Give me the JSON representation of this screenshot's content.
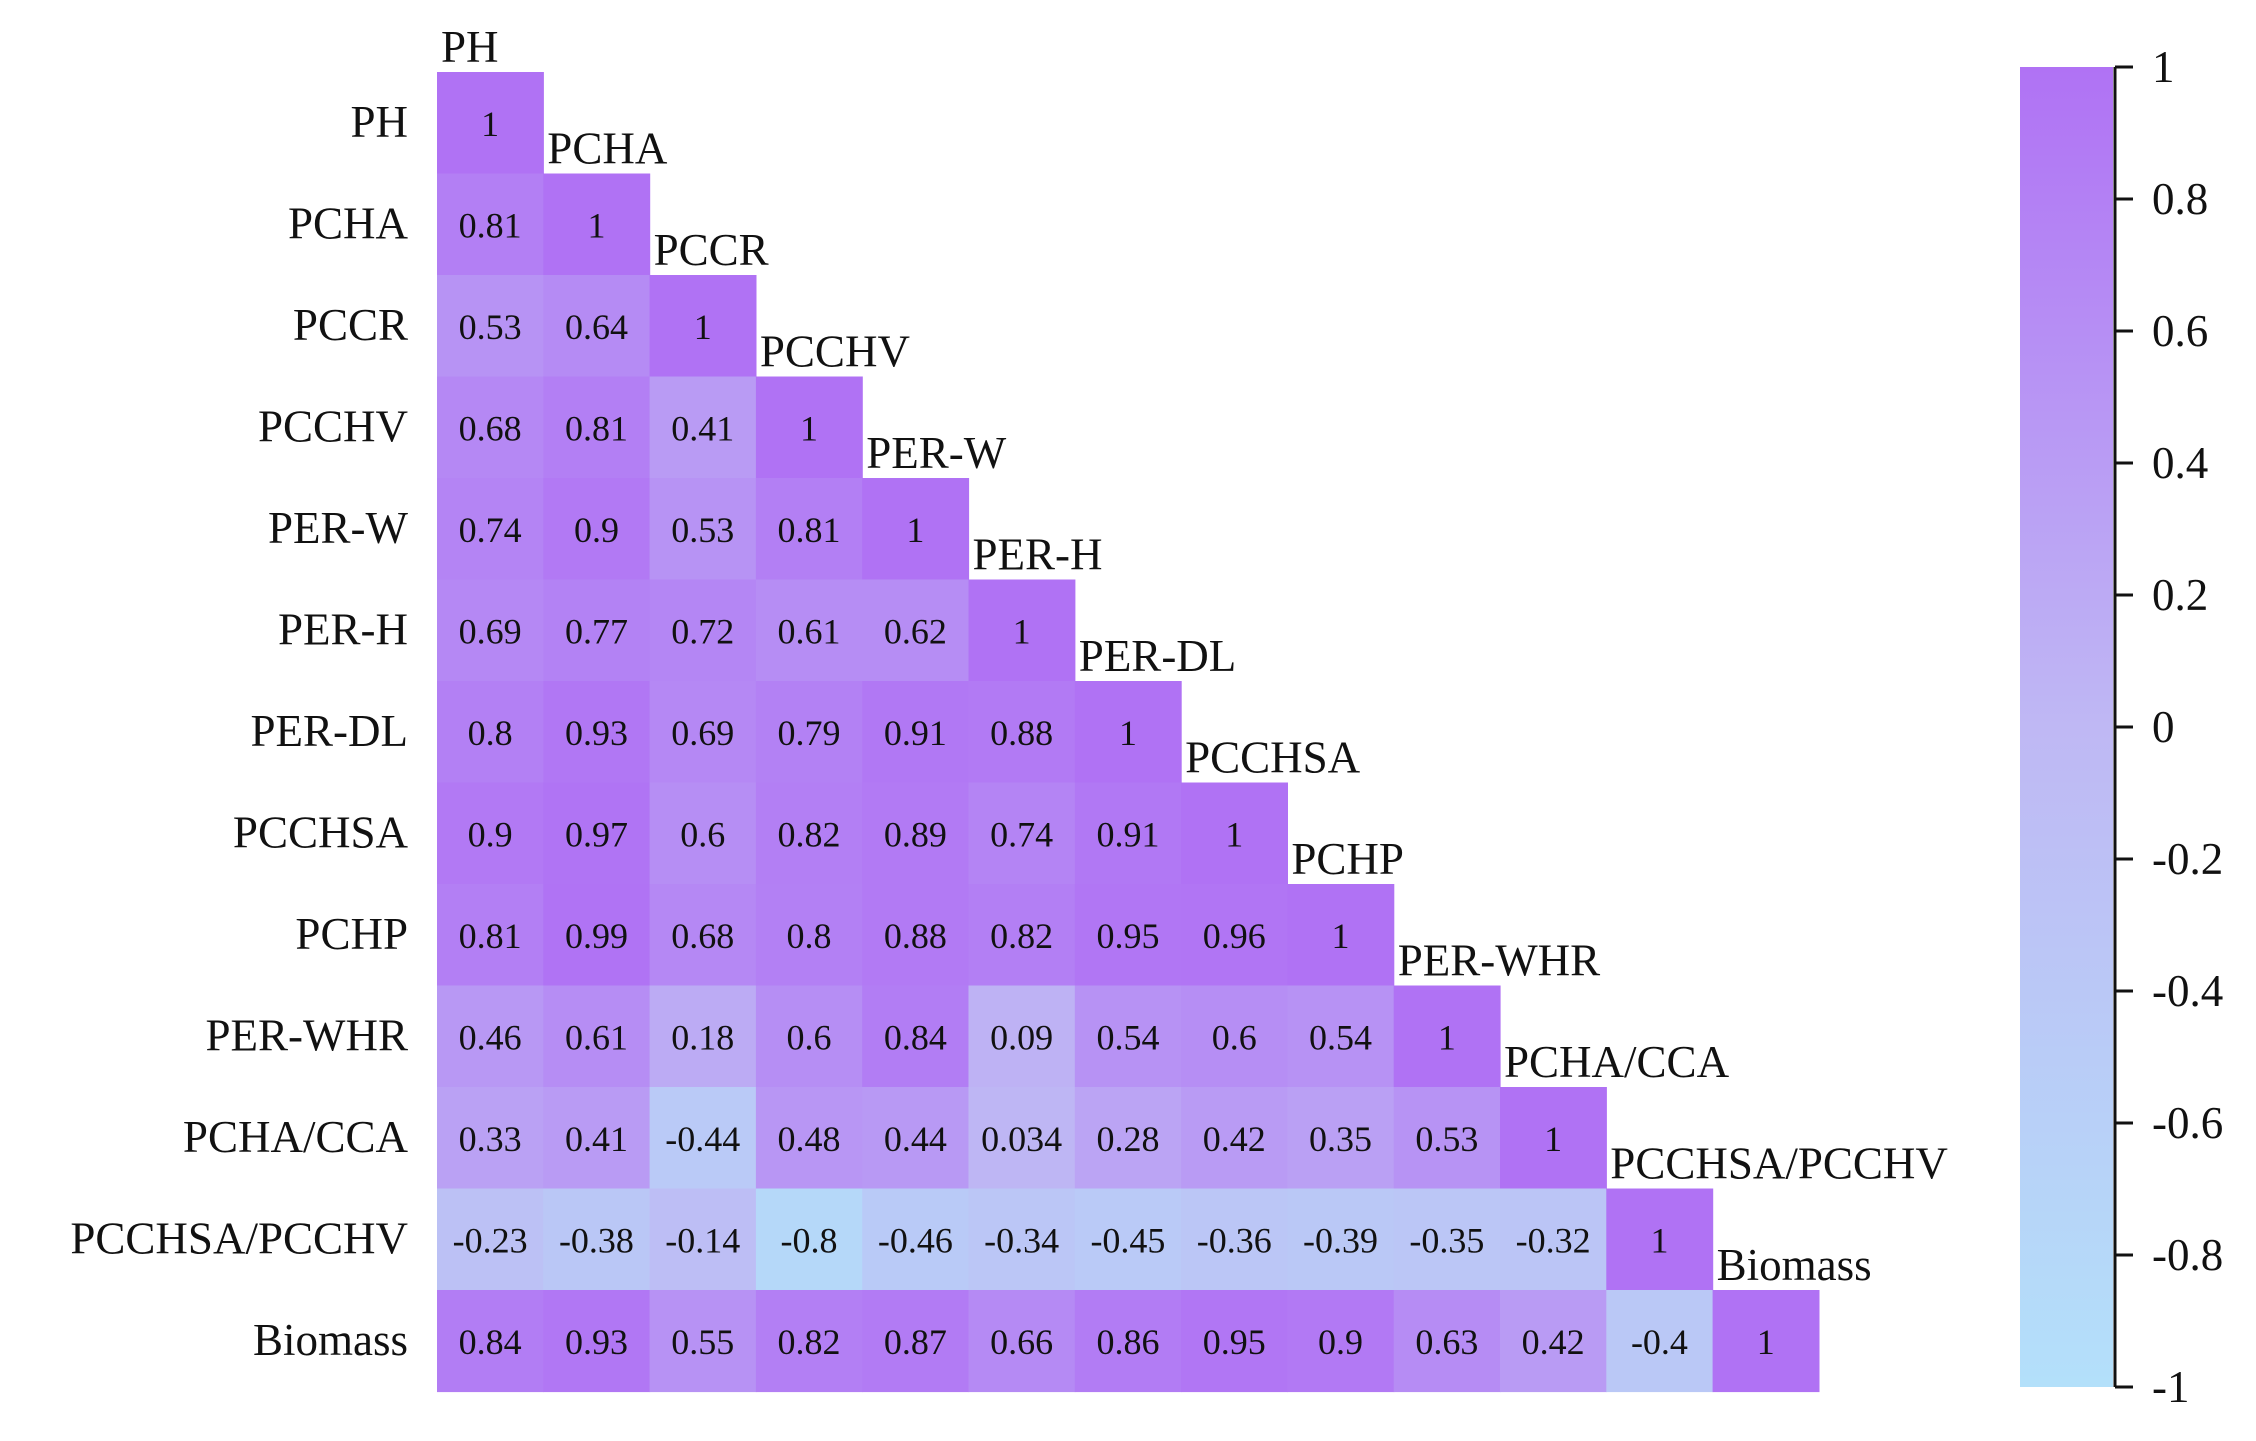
{
  "chart_data": {
    "type": "heatmap",
    "variables": [
      "PH",
      "PCHA",
      "PCCR",
      "PCCHV",
      "PER-W",
      "PER-H",
      "PER-DL",
      "PCCHSA",
      "PCHP",
      "PER-WHR",
      "PCHA/CCA",
      "PCCHSA/PCCHV",
      "Biomass"
    ],
    "values": [
      [
        1
      ],
      [
        0.81,
        1
      ],
      [
        0.53,
        0.64,
        1
      ],
      [
        0.68,
        0.81,
        0.41,
        1
      ],
      [
        0.74,
        0.9,
        0.53,
        0.81,
        1
      ],
      [
        0.69,
        0.77,
        0.72,
        0.61,
        0.62,
        1
      ],
      [
        0.8,
        0.93,
        0.69,
        0.79,
        0.91,
        0.88,
        1
      ],
      [
        0.9,
        0.97,
        0.6,
        0.82,
        0.89,
        0.74,
        0.91,
        1
      ],
      [
        0.81,
        0.99,
        0.68,
        0.8,
        0.88,
        0.82,
        0.95,
        0.96,
        1
      ],
      [
        0.46,
        0.61,
        0.18,
        0.6,
        0.84,
        0.09,
        0.54,
        0.6,
        0.54,
        1
      ],
      [
        0.33,
        0.41,
        -0.44,
        0.48,
        0.44,
        0.034,
        0.28,
        0.42,
        0.35,
        0.53,
        1
      ],
      [
        -0.23,
        -0.38,
        -0.14,
        -0.8,
        -0.46,
        -0.34,
        -0.45,
        -0.36,
        -0.39,
        -0.35,
        -0.32,
        1
      ],
      [
        0.84,
        0.93,
        0.55,
        0.82,
        0.87,
        0.66,
        0.86,
        0.95,
        0.9,
        0.63,
        0.42,
        -0.4,
        1
      ]
    ],
    "colorbar": {
      "range": [
        -1,
        1
      ],
      "ticks": [
        1,
        0.8,
        0.6,
        0.4,
        0.2,
        0,
        -0.2,
        -0.4,
        -0.6,
        -0.8,
        -1
      ],
      "color_low": "#b3e0fa",
      "color_mid": "#bfb8f4",
      "color_high": "#b072f4"
    }
  }
}
